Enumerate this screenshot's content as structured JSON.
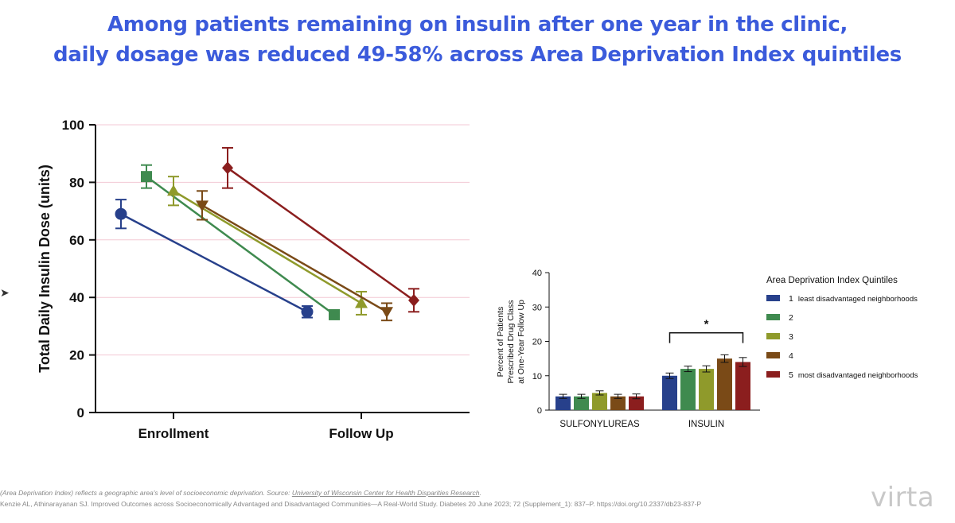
{
  "title": {
    "line1": "Among patients remaining on insulin after one year in the clinic,",
    "line2": "daily dosage was reduced 49-58% across Area Deprivation Index quintiles"
  },
  "colors": {
    "title": "#3b5bdb",
    "q1": "#27408b",
    "q2": "#3f8a4f",
    "q3": "#8f9a2b",
    "q4": "#7a4a17",
    "q5": "#8b1e1e"
  },
  "chart_data": [
    {
      "type": "line",
      "ylabel": "Total Daily Insulin Dose (units)",
      "xlabel": "",
      "categories": [
        "Enrollment",
        "Follow Up"
      ],
      "ylim": [
        0,
        100
      ],
      "yticks": [
        "0",
        "20",
        "40",
        "60",
        "80",
        "100"
      ],
      "grid": "horizontal",
      "series": [
        {
          "marker": "circle",
          "color": "#27408b",
          "values": [
            69,
            35
          ],
          "err": [
            5,
            2
          ]
        },
        {
          "marker": "square",
          "color": "#3f8a4f",
          "values": [
            82,
            34
          ],
          "err": [
            4,
            1.5
          ]
        },
        {
          "marker": "triangle-up",
          "color": "#8f9a2b",
          "values": [
            77,
            38
          ],
          "err": [
            5,
            4
          ]
        },
        {
          "marker": "triangle-down",
          "color": "#7a4a17",
          "values": [
            72,
            35
          ],
          "err": [
            5,
            3
          ]
        },
        {
          "marker": "diamond",
          "color": "#8b1e1e",
          "values": [
            85,
            39
          ],
          "err": [
            7,
            4
          ]
        }
      ]
    },
    {
      "type": "bar",
      "ylabel": "Percent of Patients Prescribed Drug Class at One-Year Follow Up",
      "ylabel_lines": [
        "Percent of Patients",
        "Prescribed Drug Class",
        "at One-Year Follow Up"
      ],
      "categories": [
        "SULFONYLUREAS",
        "INSULIN"
      ],
      "ylim": [
        0,
        40
      ],
      "yticks": [
        "0",
        "10",
        "20",
        "30",
        "40"
      ],
      "legend_title": "Area Deprivation Index Quintiles",
      "legend_position": "right",
      "annotation": "*",
      "series": [
        {
          "name_num": "1",
          "name_text": "least disadvantaged neighborhoods",
          "color": "#27408b",
          "values": [
            4,
            10
          ],
          "err": [
            0.6,
            0.8
          ]
        },
        {
          "name_num": "2",
          "name_text": "",
          "color": "#3f8a4f",
          "values": [
            4,
            12
          ],
          "err": [
            0.6,
            0.8
          ]
        },
        {
          "name_num": "3",
          "name_text": "",
          "color": "#8f9a2b",
          "values": [
            5,
            12
          ],
          "err": [
            0.6,
            0.9
          ]
        },
        {
          "name_num": "4",
          "name_text": "",
          "color": "#7a4a17",
          "values": [
            4,
            15
          ],
          "err": [
            0.6,
            1.1
          ]
        },
        {
          "name_num": "5",
          "name_text": "most disadvantaged neighborhoods",
          "color": "#8b1e1e",
          "values": [
            4,
            14
          ],
          "err": [
            0.7,
            1.3
          ]
        }
      ]
    }
  ],
  "footnotes": {
    "line1_text": "(Area Deprivation Index) reflects a geographic area's level of socioeconomic deprivation. Source: ",
    "line1_link": "University of Wisconsin Center for Health Disparities Research",
    "line1_end": ".",
    "line2": "Kenzie AL, Athinarayanan SJ. Improved Outcomes across Socioeconomically Advantaged and Disadvantaged Communities—A Real-World Study. Diabetes 20 June 2023; 72 (Supplement_1): 837–P. https://doi.org/10.2337/db23-837-P"
  },
  "logo": "virta"
}
